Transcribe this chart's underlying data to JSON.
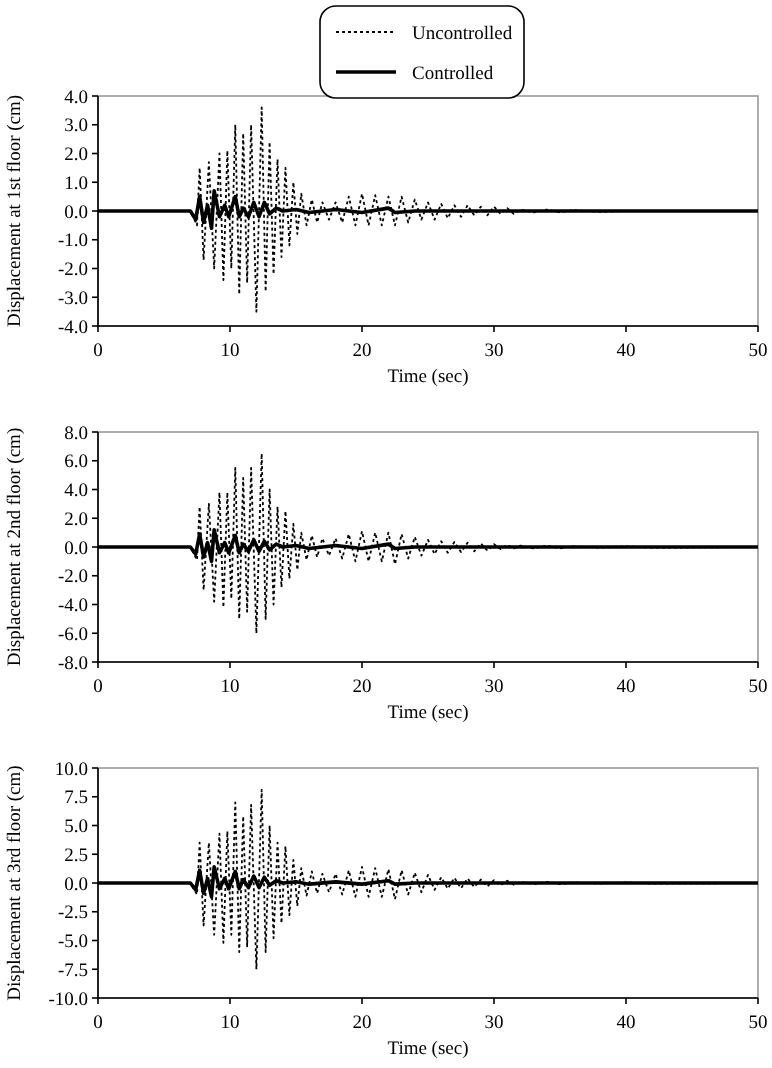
{
  "chart_data": [
    {
      "type": "line",
      "xlabel": "Time (sec)",
      "ylabel": "Displacement at 1st floor (cm)",
      "xlim": [
        0,
        50
      ],
      "xticks": [
        0,
        10,
        20,
        30,
        40,
        50
      ],
      "ylim": [
        -4,
        4
      ],
      "yticks": [
        {
          "value": -4,
          "label": "-4.0"
        },
        {
          "value": -3,
          "label": "-3.0"
        },
        {
          "value": -2,
          "label": "-2.0"
        },
        {
          "value": -1,
          "label": "-1.0"
        },
        {
          "value": 0,
          "label": "0.0"
        },
        {
          "value": 1,
          "label": "1.0"
        },
        {
          "value": 2,
          "label": "2.0"
        },
        {
          "value": 3,
          "label": "3.0"
        },
        {
          "value": 4,
          "label": "4.0"
        }
      ],
      "legend": "top",
      "grid": false,
      "series": [
        {
          "name": "Uncontrolled",
          "color": "#000000",
          "line_style": "dotted",
          "x": [
            0,
            5,
            7,
            7.5,
            7.7,
            8.0,
            8.4,
            8.8,
            9.2,
            9.5,
            9.8,
            10.1,
            10.4,
            10.7,
            11.0,
            11.3,
            11.6,
            12.0,
            12.4,
            12.7,
            13.0,
            13.3,
            13.6,
            13.9,
            14.2,
            14.5,
            14.8,
            15.1,
            15.4,
            15.8,
            16.2,
            16.6,
            17,
            17.5,
            18,
            18.5,
            19,
            19.5,
            20,
            20.5,
            21,
            21.5,
            22,
            22.5,
            23,
            23.5,
            24,
            24.5,
            25,
            25.5,
            26,
            26.5,
            27,
            27.5,
            28,
            28.5,
            29,
            29.5,
            30,
            30.5,
            31,
            31.5,
            32,
            33,
            34,
            35,
            36,
            38,
            40,
            50
          ],
          "values": [
            0,
            0,
            0,
            -0.5,
            1.5,
            -1.7,
            1.7,
            -2.0,
            2.0,
            -2.4,
            2.1,
            -2.0,
            3.0,
            -2.9,
            2.7,
            -2.5,
            3.0,
            -3.5,
            3.6,
            -2.8,
            2.4,
            -2.2,
            1.8,
            -1.6,
            1.5,
            -1.2,
            1.0,
            -0.8,
            0.6,
            -0.5,
            0.4,
            -0.4,
            0.3,
            -0.3,
            0.3,
            -0.4,
            0.5,
            -0.5,
            0.6,
            -0.5,
            0.55,
            -0.5,
            0.5,
            -0.5,
            0.5,
            -0.4,
            0.4,
            -0.3,
            0.3,
            -0.3,
            0.25,
            -0.25,
            0.2,
            -0.2,
            0.2,
            -0.15,
            0.15,
            -0.15,
            0.15,
            -0.1,
            0.1,
            -0.1,
            0.05,
            -0.05,
            0.05,
            -0.05,
            0.03,
            -0.03,
            0,
            0
          ]
        },
        {
          "name": "Controlled",
          "color": "#000000",
          "line_style": "solid",
          "x": [
            0,
            7,
            7.4,
            7.7,
            8.0,
            8.3,
            8.6,
            8.8,
            9.2,
            9.6,
            9.9,
            10.4,
            10.7,
            11.0,
            11.4,
            11.8,
            12.2,
            12.6,
            13.0,
            13.5,
            14,
            15,
            16,
            18,
            20,
            22,
            22.5,
            24,
            50
          ],
          "values": [
            0,
            0,
            -0.3,
            0.5,
            -0.4,
            0.2,
            -0.6,
            0.7,
            -0.2,
            0.2,
            -0.2,
            0.5,
            -0.2,
            0.1,
            -0.2,
            0.3,
            -0.2,
            0.3,
            -0.1,
            0.1,
            0,
            0.05,
            -0.05,
            0.05,
            -0.05,
            0.1,
            -0.05,
            0,
            0
          ]
        }
      ]
    },
    {
      "type": "line",
      "xlabel": "Time (sec)",
      "ylabel": "Displacement at 2nd floor (cm)",
      "xlim": [
        0,
        50
      ],
      "xticks": [
        0,
        10,
        20,
        30,
        40,
        50
      ],
      "ylim": [
        -8,
        8
      ],
      "yticks": [
        {
          "value": -8,
          "label": "-8.0"
        },
        {
          "value": -6,
          "label": "-6.0"
        },
        {
          "value": -4,
          "label": "-4.0"
        },
        {
          "value": -2,
          "label": "-2.0"
        },
        {
          "value": 0,
          "label": "0.0"
        },
        {
          "value": 2,
          "label": "2.0"
        },
        {
          "value": 4,
          "label": "4.0"
        },
        {
          "value": 6,
          "label": "6.0"
        },
        {
          "value": 8,
          "label": "8.0"
        }
      ],
      "grid": false,
      "series": [
        {
          "color": "#000000",
          "line_style": "dotted",
          "x": [
            0,
            5,
            7,
            7.5,
            7.7,
            8.0,
            8.4,
            8.8,
            9.2,
            9.5,
            9.8,
            10.1,
            10.4,
            10.7,
            11.0,
            11.3,
            11.6,
            12.0,
            12.4,
            12.7,
            13.0,
            13.3,
            13.6,
            13.9,
            14.2,
            14.5,
            14.8,
            15.1,
            15.4,
            15.8,
            16.2,
            16.6,
            17,
            17.5,
            18,
            18.5,
            19,
            19.5,
            20,
            20.5,
            21,
            21.5,
            22,
            22.5,
            23,
            23.5,
            24,
            24.5,
            25,
            25.5,
            26,
            26.5,
            27,
            27.5,
            28,
            28.5,
            29,
            29.5,
            30,
            30.5,
            31,
            31.5,
            32,
            33,
            34,
            35,
            36,
            38,
            40,
            42,
            50
          ],
          "values": [
            0,
            0,
            0,
            -0.9,
            2.8,
            -3.0,
            3.0,
            -3.8,
            3.8,
            -4.2,
            3.8,
            -3.6,
            5.5,
            -5.0,
            4.8,
            -4.5,
            5.5,
            -6.0,
            6.5,
            -5.0,
            4.0,
            -4.0,
            2.8,
            -2.8,
            2.5,
            -2.2,
            1.6,
            -1.6,
            1.0,
            -0.9,
            0.8,
            -0.7,
            0.6,
            -0.6,
            0.6,
            -0.8,
            0.9,
            -1.0,
            1.1,
            -1.0,
            1.0,
            -1.0,
            1.0,
            -1.2,
            0.9,
            -0.8,
            0.7,
            -0.6,
            0.5,
            -0.5,
            0.4,
            -0.4,
            0.35,
            -0.35,
            0.3,
            -0.3,
            0.25,
            -0.25,
            0.2,
            -0.15,
            0.15,
            -0.1,
            0.1,
            -0.1,
            0.1,
            -0.1,
            0.05,
            -0.05,
            0.05,
            -0.05,
            0
          ]
        },
        {
          "color": "#000000",
          "line_style": "solid",
          "x": [
            0,
            7,
            7.4,
            7.7,
            8.0,
            8.3,
            8.6,
            8.8,
            9.2,
            9.6,
            9.9,
            10.4,
            10.7,
            11.0,
            11.4,
            11.8,
            12.2,
            12.6,
            13.0,
            13.5,
            14,
            15,
            16,
            18,
            20,
            22,
            22.5,
            24,
            50
          ],
          "values": [
            0,
            0,
            -0.5,
            0.9,
            -0.7,
            0.3,
            -1.0,
            1.2,
            -0.4,
            0.3,
            -0.4,
            0.8,
            -0.4,
            0.2,
            -0.3,
            0.5,
            -0.3,
            0.4,
            -0.2,
            0.2,
            0,
            0.1,
            -0.1,
            0.1,
            -0.1,
            0.2,
            -0.1,
            0,
            0
          ]
        }
      ]
    },
    {
      "type": "line",
      "xlabel": "Time (sec)",
      "ylabel": "Displacement at 3rd floor (cm)",
      "xlim": [
        0,
        50
      ],
      "xticks": [
        0,
        10,
        20,
        30,
        40,
        50
      ],
      "ylim": [
        -10,
        10
      ],
      "yticks": [
        {
          "value": -10,
          "label": "-10.0"
        },
        {
          "value": -7.5,
          "label": "-7.5"
        },
        {
          "value": -5,
          "label": "-5.0"
        },
        {
          "value": -2.5,
          "label": "-2.5"
        },
        {
          "value": 0,
          "label": "0.0"
        },
        {
          "value": 2.5,
          "label": "2.5"
        },
        {
          "value": 5,
          "label": "5.0"
        },
        {
          "value": 7.5,
          "label": "7.5"
        },
        {
          "value": 10,
          "label": "10.0"
        }
      ],
      "grid": false,
      "series": [
        {
          "color": "#000000",
          "line_style": "dotted",
          "x": [
            0,
            5,
            7,
            7.5,
            7.7,
            8.0,
            8.4,
            8.8,
            9.2,
            9.5,
            9.8,
            10.1,
            10.4,
            10.7,
            11.0,
            11.3,
            11.6,
            12.0,
            12.4,
            12.7,
            13.0,
            13.3,
            13.6,
            13.9,
            14.2,
            14.5,
            14.8,
            15.1,
            15.4,
            15.8,
            16.2,
            16.6,
            17,
            17.5,
            18,
            18.5,
            19,
            19.5,
            20,
            20.5,
            21,
            21.5,
            22,
            22.5,
            23,
            23.5,
            24,
            24.5,
            25,
            25.5,
            26,
            26.5,
            27,
            27.5,
            28,
            28.5,
            29,
            29.5,
            30,
            30.5,
            31,
            31.5,
            32,
            33,
            34,
            35,
            36,
            38,
            40,
            42,
            50
          ],
          "values": [
            0,
            0,
            0,
            -1.0,
            3.5,
            -3.7,
            3.5,
            -4.5,
            4.3,
            -5.2,
            4.5,
            -4.5,
            7.0,
            -6.0,
            5.8,
            -5.5,
            6.8,
            -7.5,
            8.1,
            -6.0,
            5.0,
            -4.8,
            3.5,
            -3.5,
            3.2,
            -2.8,
            2.0,
            -2.0,
            1.3,
            -1.1,
            1.0,
            -0.9,
            0.8,
            -0.8,
            0.8,
            -1.0,
            1.1,
            -1.2,
            1.4,
            -1.2,
            1.3,
            -1.2,
            1.2,
            -1.4,
            1.1,
            -1.0,
            0.9,
            -0.8,
            0.7,
            -0.6,
            0.5,
            -0.5,
            0.45,
            -0.45,
            0.4,
            -0.35,
            0.3,
            -0.3,
            0.25,
            -0.2,
            0.2,
            -0.15,
            0.1,
            -0.1,
            0.1,
            -0.1,
            0.05,
            -0.05,
            0.05,
            -0.05,
            0
          ]
        },
        {
          "color": "#000000",
          "line_style": "solid",
          "x": [
            0,
            7,
            7.4,
            7.7,
            8.0,
            8.3,
            8.6,
            8.8,
            9.2,
            9.6,
            9.9,
            10.4,
            10.7,
            11.0,
            11.4,
            11.8,
            12.2,
            12.6,
            13.0,
            13.5,
            14,
            15,
            16,
            18,
            20,
            22,
            22.5,
            24,
            50
          ],
          "values": [
            0,
            0,
            -0.6,
            1.1,
            -0.9,
            0.4,
            -1.2,
            1.4,
            -0.5,
            0.4,
            -0.5,
            1.0,
            -0.5,
            0.3,
            -0.4,
            0.6,
            -0.4,
            0.5,
            -0.2,
            0.2,
            0,
            0.1,
            -0.1,
            0.1,
            -0.1,
            0.2,
            -0.1,
            0,
            0
          ]
        }
      ]
    }
  ]
}
